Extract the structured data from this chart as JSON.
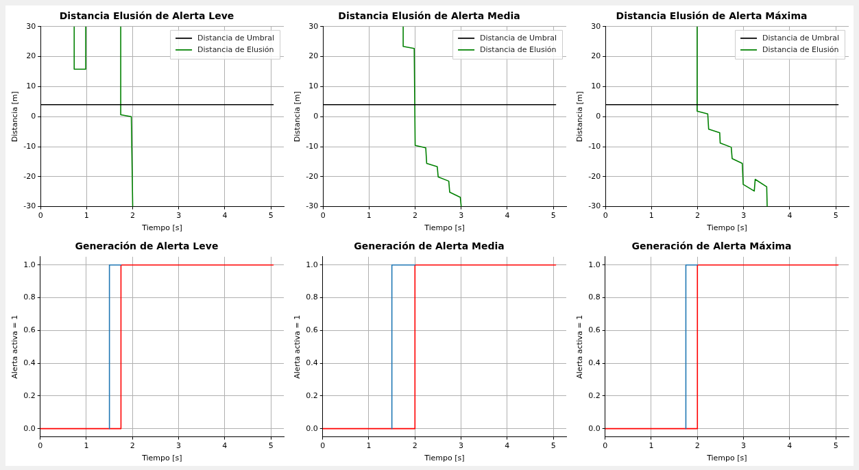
{
  "chart_data": [
    {
      "type": "line",
      "title": "Distancia Elusión de Alerta Leve",
      "xlabel": "Tiempo [s]",
      "ylabel": "Distancia [m]",
      "xlim": [
        0,
        5.28
      ],
      "ylim": [
        -30,
        30
      ],
      "xticks": [
        0,
        1,
        2,
        3,
        4,
        5
      ],
      "yticks": [
        -30,
        -20,
        -10,
        0,
        10,
        20,
        30
      ],
      "grid": true,
      "legend": "top right",
      "series": [
        {
          "name": "Distancia de Umbral",
          "color": "#000000",
          "x": [
            0,
            5.05
          ],
          "values": [
            4,
            4
          ]
        },
        {
          "name": "Distancia de Elusión",
          "color": "#008000",
          "x": [
            0.73,
            0.73,
            0.98,
            0.98,
            1.3,
            1.74,
            1.74,
            1.97,
            2.0
          ],
          "values": [
            30,
            15.8,
            15.8,
            30,
            null,
            30,
            0.6,
            0,
            -30
          ]
        }
      ]
    },
    {
      "type": "line",
      "title": "Distancia Elusión de Alerta Media",
      "xlabel": "Tiempo [s]",
      "ylabel": "Distancia [m]",
      "xlim": [
        0,
        5.28
      ],
      "ylim": [
        -30,
        30
      ],
      "xticks": [
        0,
        1,
        2,
        3,
        4,
        5
      ],
      "yticks": [
        -30,
        -20,
        -10,
        0,
        10,
        20,
        30
      ],
      "grid": true,
      "legend": "top right",
      "series": [
        {
          "name": "Distancia de Umbral",
          "color": "#000000",
          "x": [
            0,
            5.05
          ],
          "values": [
            4,
            4
          ]
        },
        {
          "name": "Distancia de Elusión",
          "color": "#008000",
          "x": [
            1.74,
            1.74,
            1.98,
            2.0,
            2.23,
            2.25,
            2.48,
            2.5,
            2.73,
            2.75,
            2.98,
            3.0
          ],
          "values": [
            30,
            23.4,
            22.7,
            -9.6,
            -10.4,
            -15.6,
            -16.7,
            -20.1,
            -21.5,
            -25.2,
            -26.9,
            -30
          ]
        }
      ]
    },
    {
      "type": "line",
      "title": "Distancia Elusión de Alerta Máxima",
      "xlabel": "Tiempo [s]",
      "ylabel": "Distancia [m]",
      "xlim": [
        0,
        5.28
      ],
      "ylim": [
        -30,
        30
      ],
      "xticks": [
        0,
        1,
        2,
        3,
        4,
        5
      ],
      "yticks": [
        -30,
        -20,
        -10,
        0,
        10,
        20,
        30
      ],
      "grid": true,
      "legend": "top right",
      "series": [
        {
          "name": "Distancia de Umbral",
          "color": "#000000",
          "x": [
            0,
            5.05
          ],
          "values": [
            4,
            4
          ]
        },
        {
          "name": "Distancia de Elusión",
          "color": "#008000",
          "x": [
            1.99,
            1.99,
            2.22,
            2.24,
            2.48,
            2.49,
            2.73,
            2.75,
            2.97,
            2.99,
            3.23,
            3.25,
            3.5,
            3.51
          ],
          "values": [
            30,
            1.8,
            0.9,
            -4.2,
            -5.4,
            -8.8,
            -10.2,
            -14.0,
            -15.6,
            -22.6,
            -24.8,
            -20.9,
            -23.4,
            -30
          ]
        }
      ]
    },
    {
      "type": "line",
      "title": "Generación de Alerta Leve",
      "xlabel": "Tiempo [s]",
      "ylabel": "Alerta activa = 1",
      "xlim": [
        0,
        5.28
      ],
      "ylim": [
        -0.05,
        1.05
      ],
      "xticks": [
        0,
        1,
        2,
        3,
        4,
        5
      ],
      "yticks": [
        {
          "value": 0,
          "label": "0.0"
        },
        {
          "value": 0.2,
          "label": "0.2"
        },
        {
          "value": 0.4,
          "label": "0.4"
        },
        {
          "value": 0.6,
          "label": "0.6"
        },
        {
          "value": 0.8,
          "label": "0.8"
        },
        {
          "value": 1,
          "label": "1.0"
        }
      ],
      "grid": true,
      "series": [
        {
          "color": "#1f77b4",
          "x": [
            1.5,
            1.5,
            1.75
          ],
          "values": [
            0,
            1,
            1
          ]
        },
        {
          "color": "#ff0000",
          "x": [
            0,
            1.75,
            1.75,
            5.05
          ],
          "values": [
            0,
            0,
            1,
            1
          ]
        }
      ]
    },
    {
      "type": "line",
      "title": "Generación de Alerta Media",
      "xlabel": "Tiempo [s]",
      "ylabel": "Alerta activa = 1",
      "xlim": [
        0,
        5.28
      ],
      "ylim": [
        -0.05,
        1.05
      ],
      "xticks": [
        0,
        1,
        2,
        3,
        4,
        5
      ],
      "yticks": [
        {
          "value": 0,
          "label": "0.0"
        },
        {
          "value": 0.2,
          "label": "0.2"
        },
        {
          "value": 0.4,
          "label": "0.4"
        },
        {
          "value": 0.6,
          "label": "0.6"
        },
        {
          "value": 0.8,
          "label": "0.8"
        },
        {
          "value": 1,
          "label": "1.0"
        }
      ],
      "grid": true,
      "series": [
        {
          "color": "#1f77b4",
          "x": [
            1.5,
            1.5,
            2.0
          ],
          "values": [
            0,
            1,
            1
          ]
        },
        {
          "color": "#ff0000",
          "x": [
            0,
            2.0,
            2.0,
            5.05
          ],
          "values": [
            0,
            0,
            1,
            1
          ]
        }
      ]
    },
    {
      "type": "line",
      "title": "Generación de Alerta Máxima",
      "xlabel": "Tiempo [s]",
      "ylabel": "Alerta activa = 1",
      "xlim": [
        0,
        5.28
      ],
      "ylim": [
        -0.05,
        1.05
      ],
      "xticks": [
        0,
        1,
        2,
        3,
        4,
        5
      ],
      "yticks": [
        {
          "value": 0,
          "label": "0.0"
        },
        {
          "value": 0.2,
          "label": "0.2"
        },
        {
          "value": 0.4,
          "label": "0.4"
        },
        {
          "value": 0.6,
          "label": "0.6"
        },
        {
          "value": 0.8,
          "label": "0.8"
        },
        {
          "value": 1,
          "label": "1.0"
        }
      ],
      "grid": true,
      "series": [
        {
          "color": "#1f77b4",
          "x": [
            1.75,
            1.75,
            2.0
          ],
          "values": [
            0,
            1,
            1
          ]
        },
        {
          "color": "#ff0000",
          "x": [
            0,
            2.0,
            2.0,
            5.05
          ],
          "values": [
            0,
            0,
            1,
            1
          ]
        }
      ]
    }
  ]
}
